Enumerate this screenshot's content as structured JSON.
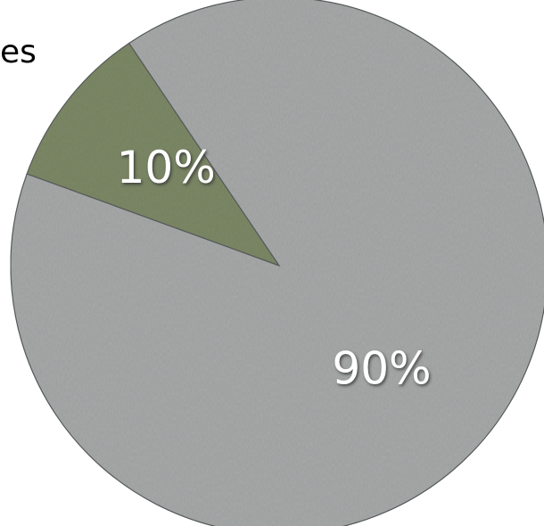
{
  "chart_data": {
    "type": "pie",
    "title": "",
    "partial_title_text": "es",
    "slices": [
      {
        "label": "10%",
        "value": 10,
        "color": "#7e8a67"
      },
      {
        "label": "90%",
        "value": 90,
        "color": "#a9abab"
      }
    ],
    "legend": "none"
  }
}
